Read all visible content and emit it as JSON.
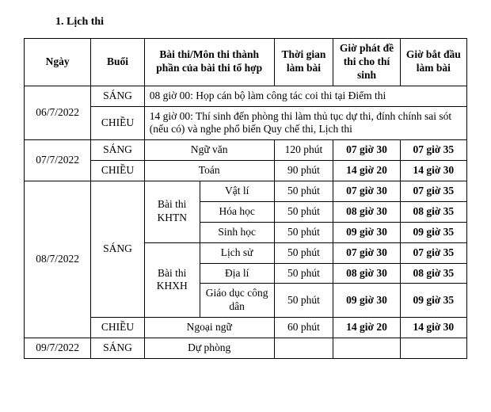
{
  "title": "1. Lịch thi",
  "headers": {
    "ngay": "Ngày",
    "buoi": "Buổi",
    "bai_mon": "Bài thi/Môn thi thành phần của bài thi tổ hợp",
    "thoigian": "Thời gian làm bài",
    "giophat": "Giờ phát đề thi cho thí sinh",
    "giobat": "Giờ bắt đầu làm bài"
  },
  "sessions": {
    "sang": "SÁNG",
    "chieu": "CHIỀU"
  },
  "days": {
    "d1": "06/7/2022",
    "d2": "07/7/2022",
    "d3": "08/7/2022",
    "d4": "09/7/2022"
  },
  "notes": {
    "d1_sang": "08 giờ 00: Họp cán bộ làm công tác coi thi tại Điểm thi",
    "d1_chieu": "14 giờ 00: Thí sinh đến phòng thi làm thủ tục dự thi, đính chính sai sót (nếu có) và nghe phổ biến Quy chế thi, Lịch thi"
  },
  "groups": {
    "khtn": "Bài thi KHTN",
    "khxh": "Bài thi KHXH"
  },
  "subjects": {
    "nguvan": "Ngữ văn",
    "toan": "Toán",
    "vatli": "Vật lí",
    "hoahoc": "Hóa học",
    "sinhhoc": "Sinh học",
    "lichsu": "Lịch sử",
    "diali": "Địa lí",
    "gdcd": "Giáo dục công dân",
    "ngoaingu": "Ngoại ngữ",
    "duphong": "Dự phòng"
  },
  "durations": {
    "nguvan": "120 phút",
    "toan": "90 phút",
    "vatli": "50 phút",
    "hoahoc": "50 phút",
    "sinhhoc": "50 phút",
    "lichsu": "50 phút",
    "diali": "50 phút",
    "gdcd": "50 phút",
    "ngoaingu": "60 phút"
  },
  "start_distribute": {
    "nguvan": "07 giờ 30",
    "toan": "14 giờ 20",
    "vatli": "07 giờ 30",
    "hoahoc": "08 giờ 30",
    "sinhhoc": "09 giờ 30",
    "lichsu": "07 giờ 30",
    "diali": "08 giờ 30",
    "gdcd": "09 giờ 30",
    "ngoaingu": "14 giờ 20"
  },
  "start_exam": {
    "nguvan": "07 giờ 35",
    "toan": "14 giờ 30",
    "vatli": "07 giờ 35",
    "hoahoc": "08 giờ 35",
    "sinhhoc": "09 giờ 35",
    "lichsu": "07 giờ 35",
    "diali": "08 giờ 35",
    "gdcd": "09 giờ 35",
    "ngoaingu": "14 giờ 30"
  }
}
